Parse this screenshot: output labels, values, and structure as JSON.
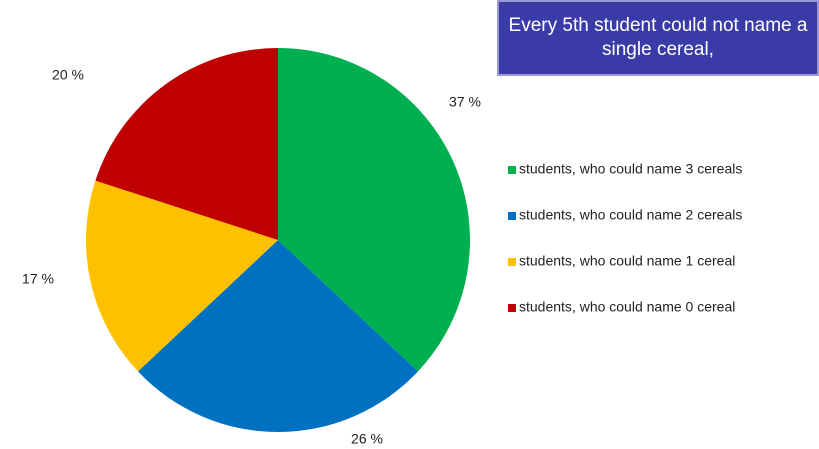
{
  "chart_data": {
    "type": "pie",
    "annotation": "Every 5th student could not name a single cereal,",
    "categories": [
      "students, who could name 3 cereals",
      "students, who could name 2 cereals",
      "students, who could name 1 cereal",
      "students, who could name 0 cereal"
    ],
    "values": [
      37,
      26,
      17,
      20
    ],
    "value_labels": [
      "37 %",
      "26 %",
      "17 %",
      "20 %"
    ],
    "colors": [
      "#00b050",
      "#0070c0",
      "#ffc000",
      "#c00000"
    ],
    "legend": "right"
  }
}
